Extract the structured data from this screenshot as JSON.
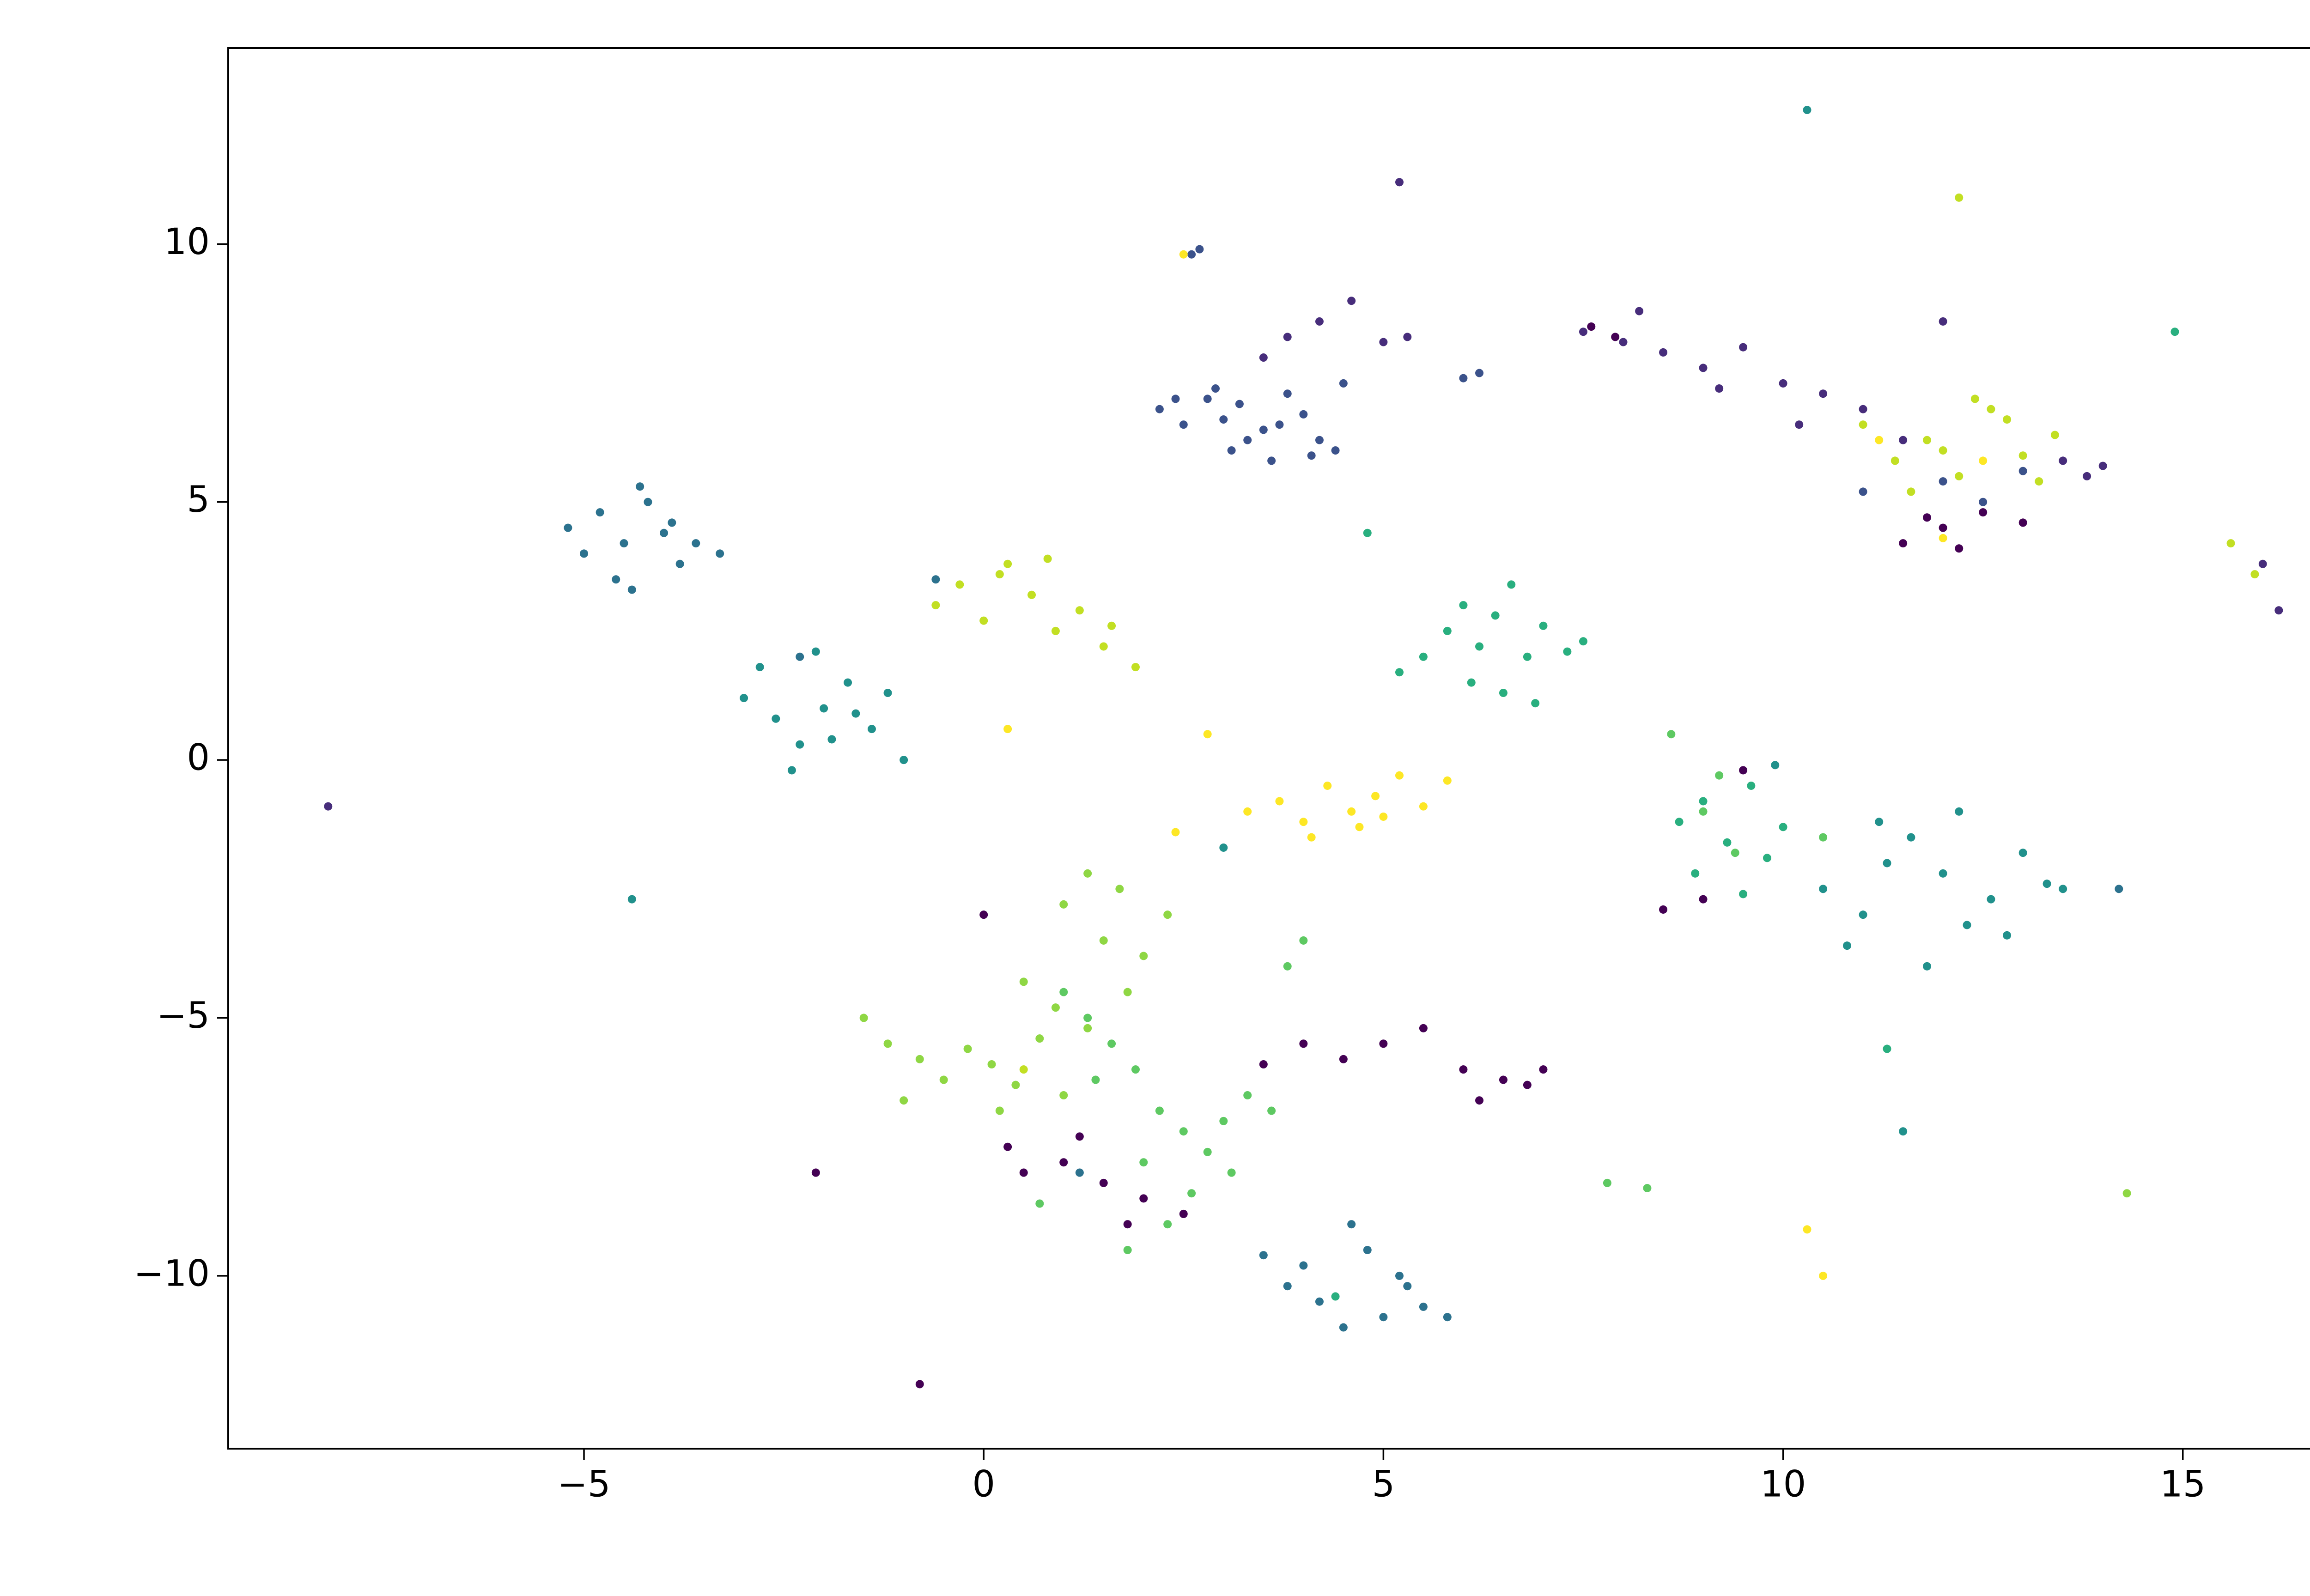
{
  "chart_data": {
    "type": "scatter",
    "xlim": [
      -9.45,
      17.55
    ],
    "ylim": [
      -13.35,
      13.8
    ],
    "xticks": [
      {
        "value": -5,
        "label": "−5"
      },
      0,
      5,
      10,
      15
    ],
    "yticks": [
      {
        "value": -10,
        "label": "−10"
      },
      {
        "value": -5,
        "label": "−5"
      },
      0,
      5,
      10
    ],
    "grid": false,
    "series": [
      {
        "color": "#440154",
        "x": [
          5,
          5.5,
          6,
          6.5,
          7,
          4.5,
          3.5,
          4,
          6.2,
          6.8,
          1,
          1.5,
          2,
          0.5,
          1.2,
          2.5,
          1.8,
          0.3,
          11.5,
          12,
          12.5,
          13,
          12.2,
          11.8,
          8.5,
          9,
          9.5,
          -0.8,
          0,
          -2.1,
          7.6,
          7.9
        ],
        "values": [
          -5.5,
          -5.2,
          -6,
          -6.2,
          -6,
          -5.8,
          -5.9,
          -5.5,
          -6.6,
          -6.3,
          -7.8,
          -8.2,
          -8.5,
          -8,
          -7.3,
          -8.8,
          -9,
          -7.5,
          4.2,
          4.5,
          4.8,
          4.6,
          4.1,
          4.7,
          -2.9,
          -2.7,
          -0.2,
          -12.1,
          -3,
          -8,
          8.4,
          8.2
        ]
      },
      {
        "color": "#472d7b",
        "x": [
          7.5,
          8,
          8.5,
          9,
          9.5,
          10,
          10.5,
          11,
          11.5,
          12,
          8.2,
          9.2,
          10.2,
          3.8,
          4.2,
          4.6,
          5,
          5.3,
          3.5,
          5.2,
          13.5,
          13.8,
          14,
          16,
          16.2,
          -8.2
        ],
        "values": [
          8.3,
          8.1,
          7.9,
          7.6,
          8,
          7.3,
          7.1,
          6.8,
          6.2,
          8.5,
          8.7,
          7.2,
          6.5,
          8.2,
          8.5,
          8.9,
          8.1,
          8.2,
          7.8,
          11.2,
          5.8,
          5.5,
          5.7,
          3.8,
          2.9,
          -0.9
        ]
      },
      {
        "color": "#3b528b",
        "x": [
          2.2,
          2.5,
          2.8,
          3,
          3.2,
          3.5,
          3.8,
          4,
          4.2,
          4.5,
          2.6,
          3.1,
          3.6,
          4.1,
          2.9,
          3.3,
          3.7,
          2.4,
          4.4,
          2.7,
          6.2,
          6,
          11,
          12,
          12.5,
          13
        ],
        "values": [
          6.8,
          6.5,
          7,
          6.6,
          6.9,
          6.4,
          7.1,
          6.7,
          6.2,
          7.3,
          9.8,
          6,
          5.8,
          5.9,
          7.2,
          6.2,
          6.5,
          7,
          6,
          9.9,
          7.5,
          7.4,
          5.2,
          5.4,
          5,
          5.6
        ]
      },
      {
        "color": "#2c728e",
        "x": [
          -5.2,
          -4.8,
          -4.5,
          -4.2,
          -4,
          -3.8,
          -5,
          -4.6,
          -4.3,
          -3.6,
          -3.3,
          -3.9,
          -4.4,
          3.8,
          4.2,
          4.5,
          4.8,
          5.2,
          5.5,
          5.8,
          4,
          4.6,
          5,
          5.3,
          3.5,
          -2.3,
          14.2,
          1.2,
          -0.6
        ],
        "values": [
          4.5,
          4.8,
          4.2,
          5,
          4.4,
          3.8,
          4,
          3.5,
          5.3,
          4.2,
          4,
          4.6,
          3.3,
          -10.2,
          -10.5,
          -11,
          -9.5,
          -10,
          -10.6,
          -10.8,
          -9.8,
          -9,
          -10.8,
          -10.2,
          -9.6,
          2,
          -2.5,
          -8,
          3.5
        ]
      },
      {
        "color": "#21918c",
        "x": [
          -3,
          -2.6,
          -2.3,
          -2,
          -1.7,
          -1.4,
          -2.8,
          -2.1,
          -1.6,
          -1.2,
          -2.4,
          -1.9,
          -1,
          10.5,
          11,
          11.3,
          11.6,
          12,
          12.3,
          12.6,
          13,
          13.3,
          10.8,
          11.8,
          12.8,
          11.2,
          12.2,
          13.5,
          9.9,
          -4.4,
          11.5,
          3,
          10.3
        ],
        "values": [
          1.2,
          0.8,
          0.3,
          1,
          1.5,
          0.6,
          1.8,
          2.1,
          0.9,
          1.3,
          -0.2,
          0.4,
          0,
          -2.5,
          -3,
          -2,
          -1.5,
          -2.2,
          -3.2,
          -2.7,
          -1.8,
          -2.4,
          -3.6,
          -4,
          -3.4,
          -1.2,
          -1,
          -2.5,
          -0.1,
          -2.7,
          -7.2,
          -1.7,
          12.6
        ]
      },
      {
        "color": "#29af7f",
        "x": [
          5.5,
          5.8,
          6,
          6.2,
          6.4,
          6.6,
          6.8,
          7,
          7.3,
          6.1,
          6.5,
          5.2,
          6.9,
          7.5,
          8.7,
          9,
          9.3,
          9.6,
          9.8,
          8.9,
          9.5,
          10,
          14.9,
          11.3,
          4.8,
          4.4
        ],
        "values": [
          2,
          2.5,
          3,
          2.2,
          2.8,
          3.4,
          2,
          2.6,
          2.1,
          1.5,
          1.3,
          1.7,
          1.1,
          2.3,
          -1.2,
          -0.8,
          -1.6,
          -0.5,
          -1.9,
          -2.2,
          -2.6,
          -1.3,
          8.3,
          -5.6,
          4.4,
          -10.4
        ]
      },
      {
        "color": "#5ec962",
        "x": [
          1,
          1.3,
          1.6,
          1.9,
          2.2,
          2.5,
          2.8,
          3.1,
          1.4,
          2,
          2.6,
          3.3,
          3.6,
          1.8,
          2.3,
          3,
          0.7,
          3.8,
          4,
          9,
          9.2,
          8.6,
          7.8,
          8.3,
          10.5,
          9.4
        ],
        "values": [
          -4.5,
          -5,
          -5.5,
          -6,
          -6.8,
          -7.2,
          -7.6,
          -8,
          -6.2,
          -7.8,
          -8.4,
          -6.5,
          -6.8,
          -9.5,
          -9,
          -7,
          -8.6,
          -4,
          -3.5,
          -1,
          -0.3,
          0.5,
          -8.2,
          -8.3,
          -1.5,
          -1.8
        ]
      },
      {
        "color": "#8fd744",
        "x": [
          -1.5,
          -1.2,
          -0.8,
          -0.5,
          -0.2,
          0.1,
          0.4,
          0.7,
          1,
          1.3,
          -1,
          0.2,
          0.9,
          1.5,
          1.7,
          1,
          1.3,
          2,
          2.3,
          0.5,
          1.8,
          14.3
        ],
        "values": [
          -5,
          -5.5,
          -5.8,
          -6.2,
          -5.6,
          -5.9,
          -6.3,
          -5.4,
          -6.5,
          -5.2,
          -6.6,
          -6.8,
          -4.8,
          -3.5,
          -2.5,
          -2.8,
          -2.2,
          -3.8,
          -3,
          -4.3,
          -4.5,
          -8.4
        ]
      },
      {
        "color": "#c2df23",
        "x": [
          -0.6,
          -0.3,
          0,
          0.3,
          0.6,
          0.9,
          1.2,
          1.5,
          0.2,
          0.8,
          1.6,
          1.9,
          11,
          11.4,
          11.8,
          12.2,
          12.6,
          13,
          13.4,
          11.6,
          12.4,
          13.2,
          12,
          12.8,
          15.6,
          15.9,
          12.2,
          0.5
        ],
        "values": [
          3,
          3.4,
          2.7,
          3.8,
          3.2,
          2.5,
          2.9,
          2.2,
          3.6,
          3.9,
          2.6,
          1.8,
          6.5,
          5.8,
          6.2,
          5.5,
          6.8,
          5.9,
          6.3,
          5.2,
          7,
          5.4,
          6,
          6.6,
          4.2,
          3.6,
          10.9,
          -6
        ]
      },
      {
        "color": "#fde725",
        "x": [
          3.3,
          3.7,
          4,
          4.3,
          4.6,
          4.9,
          5.2,
          5.5,
          5.8,
          4.1,
          4.7,
          5,
          2.8,
          2.4,
          10.3,
          10.5,
          12.5,
          11.2,
          2.5,
          0.3,
          12
        ],
        "values": [
          -1,
          -0.8,
          -1.2,
          -0.5,
          -1,
          -0.7,
          -0.3,
          -0.9,
          -0.4,
          -1.5,
          -1.3,
          -1.1,
          0.5,
          -1.4,
          -9.1,
          -10,
          5.8,
          6.2,
          9.8,
          0.6,
          4.3
        ]
      }
    ]
  }
}
